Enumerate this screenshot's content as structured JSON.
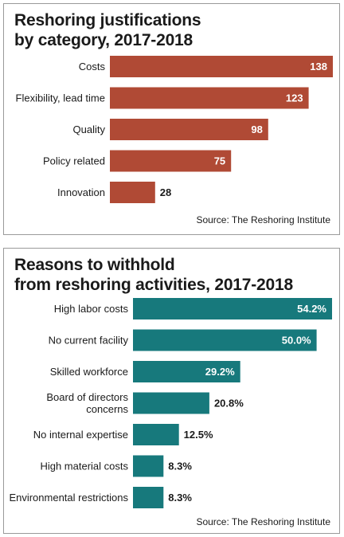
{
  "charts": [
    {
      "title_lines": [
        "Reshoring justifications",
        "by category, 2017-2018"
      ],
      "source": "Source: The Reshoring Institute",
      "bar_color": "#b04a35",
      "chart_data": {
        "type": "bar",
        "orientation": "horizontal",
        "title": "Reshoring justifications by category, 2017-2018",
        "categories": [
          [
            "Costs"
          ],
          [
            "Flexibility, lead time"
          ],
          [
            "Quality"
          ],
          [
            "Policy related"
          ],
          [
            "Innovation"
          ]
        ],
        "values": [
          138,
          123,
          98,
          75,
          28
        ],
        "value_labels": [
          "138",
          "123",
          "98",
          "75",
          "28"
        ],
        "xlim": [
          0,
          138
        ],
        "grid": false,
        "legend": "none"
      }
    },
    {
      "title_lines": [
        "Reasons to withhold",
        "from reshoring activities, 2017-2018"
      ],
      "source": "Source: The Reshoring Institute",
      "bar_color": "#17797c",
      "chart_data": {
        "type": "bar",
        "orientation": "horizontal",
        "title": "Reasons to withhold from reshoring activities, 2017-2018",
        "categories": [
          [
            "High labor costs"
          ],
          [
            "No current facility"
          ],
          [
            "Skilled workforce"
          ],
          [
            "Board of directors",
            "concerns"
          ],
          [
            "No internal expertise"
          ],
          [
            "High material costs"
          ],
          [
            "Environmental restrictions"
          ]
        ],
        "values": [
          54.2,
          50.0,
          29.2,
          20.8,
          12.5,
          8.3,
          8.3
        ],
        "value_labels": [
          "54.2%",
          "50.0%",
          "29.2%",
          "20.8%",
          "12.5%",
          "8.3%",
          "8.3%"
        ],
        "xlim": [
          0,
          54.2
        ],
        "grid": false,
        "legend": "none"
      }
    }
  ]
}
